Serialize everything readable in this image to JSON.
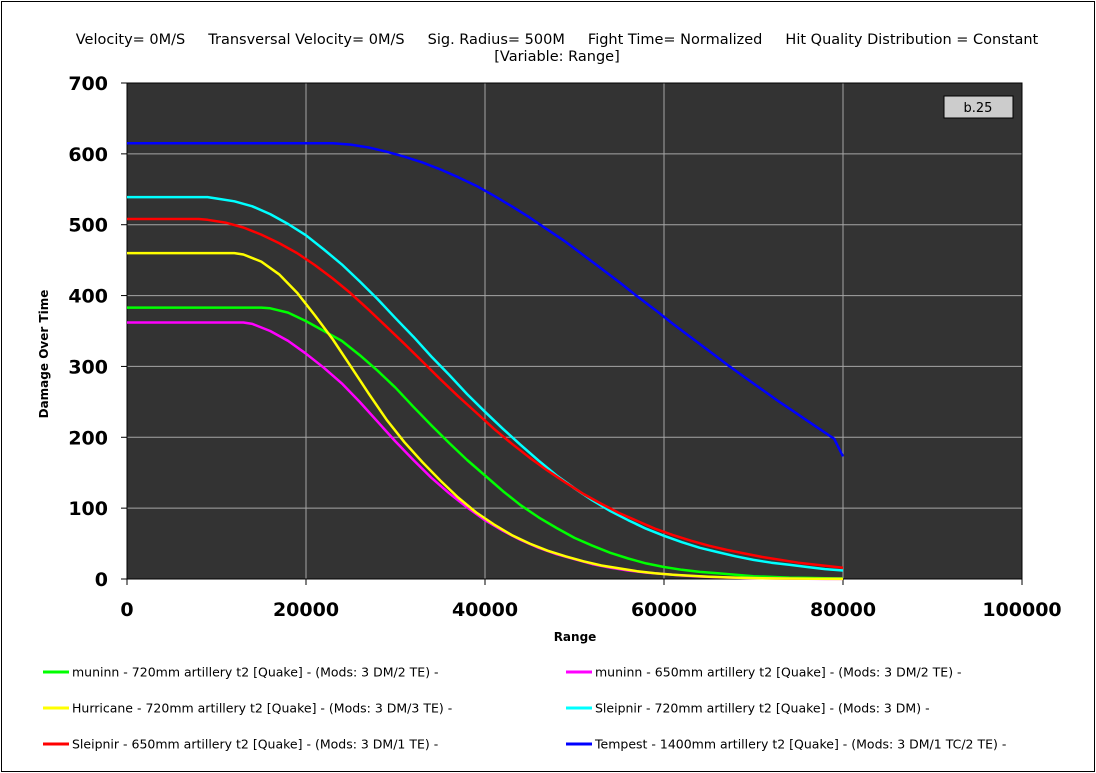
{
  "header": {
    "line1": "Velocity= 0M/S     Transversal Velocity= 0M/S     Sig. Radius= 500M     Fight Time= Normalized     Hit Quality Distribution = Constant",
    "line2": "[Variable: Range]"
  },
  "version_badge": "b.25",
  "chart_data": {
    "type": "line",
    "xlabel": "Range",
    "ylabel": "Damage Over Time",
    "xlim": [
      0,
      100000
    ],
    "ylim": [
      0,
      700
    ],
    "x_ticks": [
      "0",
      "20000",
      "40000",
      "60000",
      "80000",
      "100000"
    ],
    "y_ticks": [
      "0",
      "100",
      "200",
      "300",
      "400",
      "500",
      "600",
      "700"
    ],
    "grid": true,
    "plot_background": "#333333",
    "legend_position": "bottom",
    "series": [
      {
        "name": "muninn - 720mm artillery t2 [Quake] - (Mods: 3 DM/2 TE) -",
        "color": "#00ff00",
        "x": [
          0,
          5000,
          10000,
          15000,
          16000,
          18000,
          20000,
          22000,
          24000,
          26000,
          28000,
          30000,
          32000,
          34000,
          36000,
          38000,
          40000,
          42000,
          44000,
          46000,
          48000,
          50000,
          52000,
          54000,
          56000,
          58000,
          60000,
          62000,
          64000,
          66000,
          68000,
          70000,
          72000,
          74000,
          76000,
          78000,
          80000
        ],
        "y": [
          383,
          383,
          383,
          383,
          382,
          376,
          364,
          350,
          336,
          316,
          294,
          270,
          243,
          217,
          192,
          168,
          146,
          124,
          104,
          87,
          72,
          58,
          47,
          37,
          29,
          22,
          17,
          13,
          10,
          8,
          6,
          4,
          3,
          2,
          1.5,
          1,
          0.8
        ]
      },
      {
        "name": "muninn - 650mm artillery t2 [Quake] - (Mods: 3 DM/2 TE) -",
        "color": "#ff00ff",
        "x": [
          0,
          5000,
          10000,
          13000,
          14000,
          16000,
          18000,
          20000,
          22000,
          24000,
          26000,
          28000,
          30000,
          32000,
          34000,
          36000,
          38000,
          40000,
          42000,
          44000,
          46000,
          48000,
          50000,
          52000,
          54000,
          56000,
          58000,
          60000,
          62000,
          64000,
          66000,
          68000,
          70000,
          72000,
          74000,
          76000,
          78000,
          80000
        ],
        "y": [
          362,
          362,
          362,
          362,
          360,
          350,
          336,
          318,
          298,
          276,
          250,
          222,
          194,
          168,
          143,
          121,
          101,
          83,
          68,
          55,
          44,
          35,
          28,
          21,
          16,
          12,
          9,
          7,
          5,
          3.5,
          2.5,
          1.8,
          1.2,
          0.8,
          0.5,
          0.3,
          0.2,
          0.1
        ]
      },
      {
        "name": "Hurricane - 720mm artillery t2 [Quake] - (Mods: 3 DM/3 TE) -",
        "color": "#ffff00",
        "x": [
          0,
          5000,
          10000,
          12000,
          13000,
          15000,
          17000,
          19000,
          21000,
          23000,
          25000,
          27000,
          29000,
          31000,
          33000,
          35000,
          37000,
          39000,
          41000,
          43000,
          45000,
          47000,
          49000,
          51000,
          53000,
          55000,
          57000,
          59000,
          61000,
          63000,
          65000,
          67000,
          69000,
          71000,
          73000,
          75000,
          77000,
          80000
        ],
        "y": [
          460,
          460,
          460,
          460,
          458,
          448,
          430,
          404,
          372,
          338,
          300,
          262,
          225,
          193,
          165,
          139,
          115,
          94,
          77,
          62,
          50,
          40,
          32,
          25,
          19,
          15,
          11,
          8,
          6,
          4.5,
          3.2,
          2.3,
          1.6,
          1.1,
          0.7,
          0.5,
          0.3,
          0.1
        ]
      },
      {
        "name": "Sleipnir - 720mm artillery t2 [Quake] - (Mods: 3 DM) -",
        "color": "#00ffff",
        "x": [
          0,
          5000,
          9000,
          10000,
          12000,
          14000,
          16000,
          18000,
          20000,
          22000,
          24000,
          26000,
          28000,
          30000,
          32000,
          34000,
          36000,
          38000,
          40000,
          42000,
          44000,
          46000,
          48000,
          50000,
          52000,
          54000,
          56000,
          58000,
          60000,
          62000,
          64000,
          66000,
          68000,
          70000,
          72000,
          74000,
          76000,
          78000,
          80000
        ],
        "y": [
          539,
          539,
          539,
          537,
          533,
          526,
          515,
          501,
          485,
          465,
          444,
          420,
          395,
          368,
          342,
          314,
          288,
          261,
          236,
          212,
          189,
          167,
          146,
          128,
          111,
          96,
          83,
          71,
          61,
          52,
          44,
          38,
          32,
          27,
          23,
          20,
          17,
          14,
          12
        ]
      },
      {
        "name": "Sleipnir - 650mm artillery t2 [Quake] - (Mods: 3 DM/1 TE) -",
        "color": "#ff0000",
        "x": [
          0,
          5000,
          8000,
          9000,
          11000,
          13000,
          15000,
          17000,
          19000,
          21000,
          23000,
          25000,
          27000,
          29000,
          31000,
          33000,
          35000,
          37000,
          39000,
          41000,
          43000,
          45000,
          47000,
          49000,
          51000,
          53000,
          55000,
          57000,
          59000,
          61000,
          63000,
          65000,
          67000,
          69000,
          71000,
          73000,
          75000,
          77000,
          80000
        ],
        "y": [
          508,
          508,
          508,
          507,
          503,
          496,
          486,
          474,
          460,
          443,
          424,
          403,
          380,
          356,
          332,
          307,
          282,
          258,
          235,
          212,
          191,
          171,
          153,
          136,
          120,
          106,
          93,
          82,
          71,
          62,
          54,
          47,
          41,
          36,
          31,
          27,
          23,
          20,
          16
        ]
      },
      {
        "name": "Tempest - 1400mm artillery t2 [Quake] - (Mods: 3 DM/1 TC/2 TE) -",
        "color": "#0000ff",
        "x": [
          0,
          5000,
          10000,
          15000,
          20000,
          23000,
          25000,
          27000,
          29000,
          31000,
          33000,
          35000,
          37000,
          39000,
          41000,
          43000,
          45000,
          47000,
          49000,
          51000,
          53000,
          55000,
          57000,
          59000,
          61000,
          63000,
          65000,
          67000,
          69000,
          71000,
          73000,
          75000,
          77000,
          79000,
          80000
        ],
        "y": [
          615,
          615,
          615,
          615,
          615,
          615,
          613,
          609,
          603,
          596,
          588,
          578,
          567,
          555,
          541,
          526,
          510,
          493,
          476,
          457,
          438,
          419,
          399,
          380,
          360,
          341,
          322,
          303,
          285,
          267,
          249,
          232,
          215,
          198,
          173
        ]
      }
    ]
  }
}
